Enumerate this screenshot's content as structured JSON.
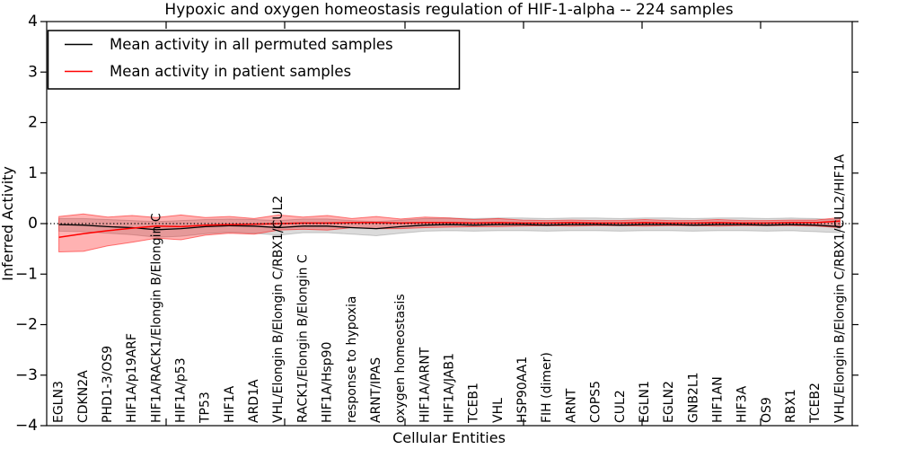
{
  "figure": {
    "title": "Hypoxic and oxygen homeostasis regulation of HIF-1-alpha -- 224 samples",
    "xlabel": "Cellular Entities",
    "ylabel": "Inferred Activity"
  },
  "legend": {
    "position": "upper left",
    "entries": [
      {
        "label": "Mean activity in all permuted samples",
        "color": "#000000"
      },
      {
        "label": "Mean activity in patient samples",
        "color": "#ff0000"
      }
    ]
  },
  "colors": {
    "permuted_line": "#000000",
    "patient_line": "#ff0000",
    "permuted_band": "#000000",
    "patient_band": "#ff0000",
    "frame": "#000000",
    "background": "#ffffff"
  },
  "chart_data": {
    "type": "line",
    "title": "Hypoxic and oxygen homeostasis regulation of HIF-1-alpha -- 224 samples",
    "xlabel": "Cellular Entities",
    "ylabel": "Inferred Activity",
    "ylim": [
      -4,
      4
    ],
    "grid": false,
    "legend_position": "upper left",
    "ytick_values": [
      4,
      3,
      2,
      1,
      0,
      -1,
      -2,
      -3,
      -4
    ],
    "ytick_labels": [
      "4",
      "3",
      "2",
      "1",
      "0",
      "−1",
      "−2",
      "−3",
      "−4"
    ],
    "reference_line": {
      "y": 0,
      "style": "dotted",
      "color": "#000000"
    },
    "categories": [
      "EGLN3",
      "CDKN2A",
      "PHD1-3/OS9",
      "HIF1A/p19ARF",
      "HIF1A/RACK1/Elongin B/Elongin C",
      "HIF1A/p53",
      "TP53",
      "HIF1A",
      "ARD1A",
      "VHL/Elongin B/Elongin C/RBX1/CUL2",
      "RACK1/Elongin B/Elongin C",
      "HIF1A/Hsp90",
      "response to hypoxia",
      "ARNT/IPAS",
      "oxygen homeostasis",
      "HIF1A/ARNT",
      "HIF1A/JAB1",
      "TCEB1",
      "VHL",
      "HSP90AA1",
      "FIH (dimer)",
      "ARNT",
      "COPS5",
      "CUL2",
      "EGLN1",
      "EGLN2",
      "GNB2L1",
      "HIF1AN",
      "HIF3A",
      "OS9",
      "RBX1",
      "TCEB2",
      "VHL/Elongin B/Elongin C/RBX1/CUL2/HIF1A"
    ],
    "series": [
      {
        "name": "Mean activity in all permuted samples",
        "color": "#000000",
        "band_opacity": 0.14,
        "values": [
          -0.02,
          -0.03,
          -0.06,
          -0.08,
          -0.12,
          -0.1,
          -0.06,
          -0.04,
          -0.05,
          -0.08,
          -0.05,
          -0.05,
          -0.08,
          -0.1,
          -0.06,
          -0.03,
          -0.02,
          -0.03,
          -0.02,
          -0.02,
          -0.03,
          -0.02,
          -0.02,
          -0.03,
          -0.02,
          -0.02,
          -0.03,
          -0.02,
          -0.02,
          -0.03,
          -0.02,
          -0.03,
          -0.06
        ],
        "band_upper": [
          0.1,
          0.1,
          0.08,
          0.06,
          0.04,
          0.06,
          0.08,
          0.09,
          0.08,
          0.06,
          0.09,
          0.09,
          0.06,
          0.04,
          0.07,
          0.1,
          0.11,
          0.1,
          0.11,
          0.11,
          0.1,
          0.11,
          0.11,
          0.1,
          0.11,
          0.11,
          0.1,
          0.11,
          0.11,
          0.1,
          0.11,
          0.1,
          0.07
        ],
        "band_lower": [
          -0.15,
          -0.16,
          -0.19,
          -0.22,
          -0.27,
          -0.25,
          -0.2,
          -0.17,
          -0.19,
          -0.23,
          -0.18,
          -0.18,
          -0.21,
          -0.24,
          -0.19,
          -0.15,
          -0.14,
          -0.15,
          -0.14,
          -0.14,
          -0.15,
          -0.14,
          -0.14,
          -0.15,
          -0.14,
          -0.14,
          -0.15,
          -0.14,
          -0.14,
          -0.15,
          -0.14,
          -0.16,
          -0.18
        ]
      },
      {
        "name": "Mean activity in patient samples",
        "color": "#ff0000",
        "band_opacity": 0.3,
        "values": [
          -0.27,
          -0.2,
          -0.14,
          -0.09,
          -0.05,
          -0.06,
          -0.03,
          -0.02,
          -0.01,
          0.0,
          0.01,
          0.01,
          0.02,
          0.02,
          0.01,
          0.02,
          0.02,
          0.01,
          0.02,
          0.01,
          0.01,
          0.02,
          0.01,
          0.01,
          0.02,
          0.01,
          0.01,
          0.02,
          0.01,
          0.01,
          0.02,
          0.02,
          0.05
        ],
        "band_upper": [
          0.14,
          0.19,
          0.13,
          0.16,
          0.12,
          0.17,
          0.12,
          0.14,
          0.1,
          0.17,
          0.13,
          0.16,
          0.1,
          0.14,
          0.09,
          0.13,
          0.11,
          0.08,
          0.1,
          0.07,
          0.06,
          0.07,
          0.06,
          0.06,
          0.08,
          0.06,
          0.06,
          0.08,
          0.06,
          0.06,
          0.07,
          0.07,
          0.12
        ],
        "band_lower": [
          -0.56,
          -0.55,
          -0.44,
          -0.37,
          -0.29,
          -0.32,
          -0.23,
          -0.19,
          -0.21,
          -0.13,
          -0.11,
          -0.13,
          -0.08,
          -0.1,
          -0.1,
          -0.08,
          -0.07,
          -0.06,
          -0.06,
          -0.05,
          -0.04,
          -0.05,
          -0.04,
          -0.04,
          -0.05,
          -0.04,
          -0.04,
          -0.05,
          -0.04,
          -0.04,
          -0.04,
          -0.05,
          -0.08
        ]
      }
    ]
  }
}
